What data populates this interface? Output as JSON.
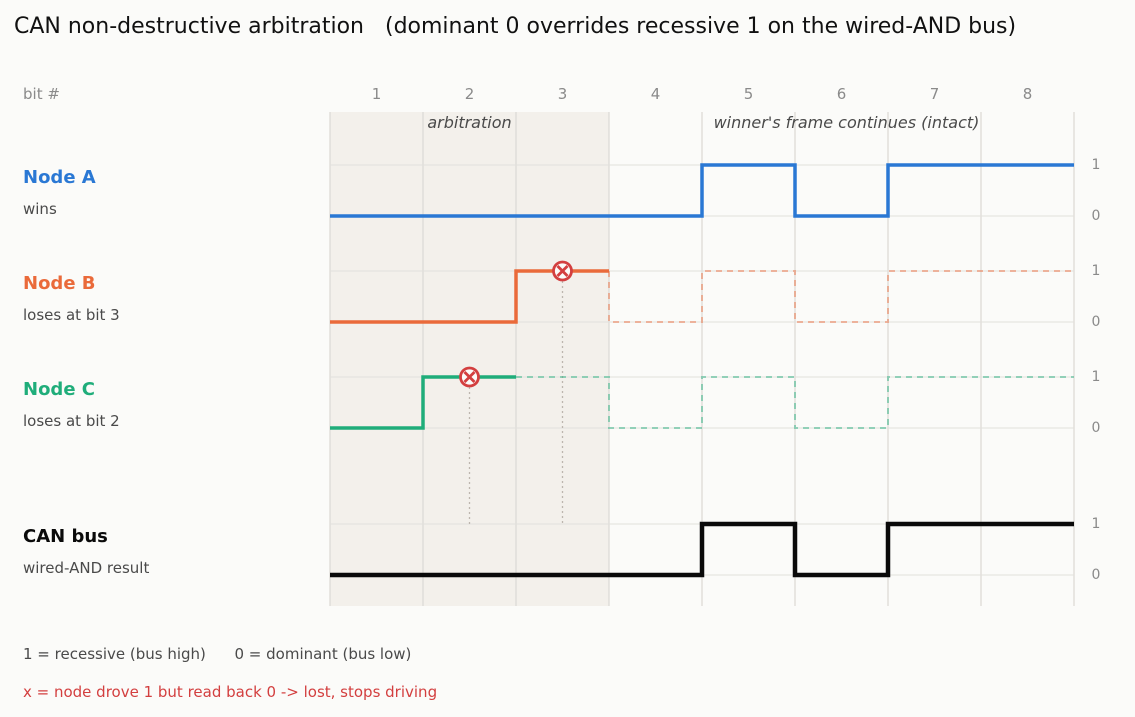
{
  "title": "CAN non-destructive arbitration   (dominant 0 overrides recessive 1 on the wired-AND bus)",
  "bit_header_label": "bit #",
  "bit_numbers": [
    "1",
    "2",
    "3",
    "4",
    "5",
    "6",
    "7",
    "8"
  ],
  "arbitration_bits": 3,
  "zones": {
    "arbitration_label": "arbitration",
    "winner_label": "winner's frame continues (intact)"
  },
  "level_labels": {
    "high": "1",
    "low": "0"
  },
  "signals": [
    {
      "key": "node-a",
      "name": "Node A",
      "subtitle": "wins",
      "color": "#2a78d4",
      "bits": [
        0,
        0,
        0,
        0,
        1,
        0,
        1,
        1
      ],
      "lost_at_bit": null
    },
    {
      "key": "node-b",
      "name": "Node B",
      "subtitle": "loses at bit 3",
      "color": "#ea6a3a",
      "bits": [
        0,
        0,
        1,
        0,
        1,
        0,
        1,
        1
      ],
      "lost_at_bit": 3
    },
    {
      "key": "node-c",
      "name": "Node C",
      "subtitle": "loses at bit 2",
      "color": "#1fad7a",
      "bits": [
        0,
        1,
        1,
        0,
        1,
        0,
        1,
        1
      ],
      "lost_at_bit": 2
    }
  ],
  "bus": {
    "key": "can-bus",
    "name": "CAN bus",
    "subtitle": "wired-AND result",
    "color": "#0a0a0a",
    "bits": [
      0,
      0,
      0,
      0,
      1,
      0,
      1,
      1
    ]
  },
  "lost_marker_color": "#d33f3f",
  "legend": {
    "line1": "1 = recessive (bus high)      0 = dominant (bus low)",
    "line2": "x = node drove 1 but read back 0  ->  lost, stops driving"
  }
}
